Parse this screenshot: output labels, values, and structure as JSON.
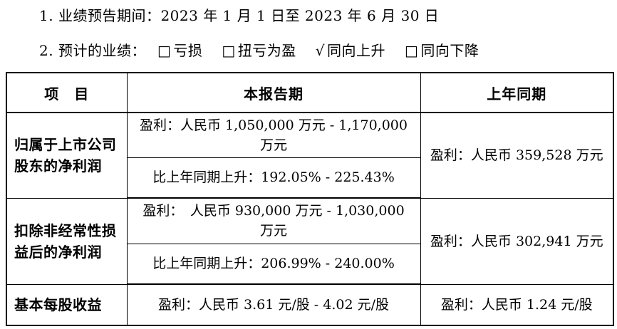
{
  "intro": {
    "period_line": "1. 业绩预告期间：2023 年 1 月 1 日至 2023 年 6 月 30 日",
    "forecast_label": "2. 预计的业绩：",
    "options": [
      {
        "symbol": "□",
        "label": "亏损",
        "checked": false
      },
      {
        "symbol": "□",
        "label": "扭亏为盈",
        "checked": false
      },
      {
        "symbol": "√",
        "label": "同向上升",
        "checked": true
      },
      {
        "symbol": "□",
        "label": "同向下降",
        "checked": false
      }
    ]
  },
  "table": {
    "headers": {
      "item": "项　目",
      "current_period": "本报告期",
      "prior_period": "上年同期"
    },
    "rows": {
      "net_profit": {
        "item": "归属于上市公司股东的净利润",
        "profit_range": "盈利：人民币 1,050,000 万元 - 1,170,000 万元",
        "yoy_change": "比上年同期上升：192.05% - 225.43%",
        "prior_value": "盈利：人民币 359,528 万元"
      },
      "net_profit_excl_nonrecurring": {
        "item": "扣除非经常性损益后的净利润",
        "profit_range": "盈利：　人民币 930,000 万元 - 1,030,000 万元",
        "yoy_change": "比上年同期上升：206.99% - 240.00%",
        "prior_value": "盈利：人民币 302,941 万元"
      },
      "basic_eps": {
        "item": "基本每股收益",
        "current_value": "盈利：人民币 3.61 元/股 -  4.02 元/股",
        "prior_value": "盈利：人民币 1.24 元/股"
      }
    }
  }
}
